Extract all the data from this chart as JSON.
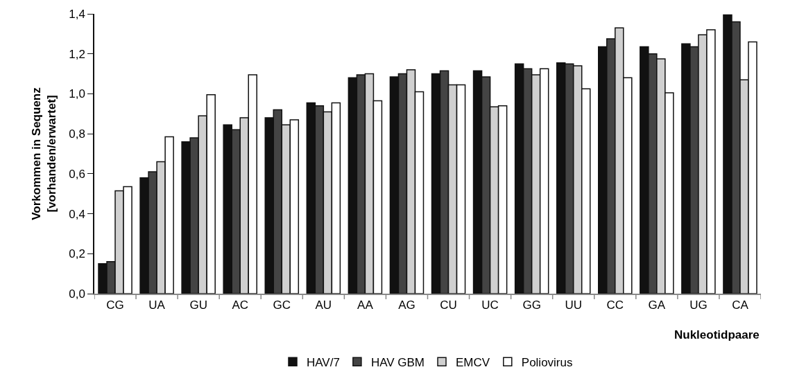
{
  "chart_data": {
    "type": "bar",
    "xlabel": "Nukleotidpaare",
    "ylabel": "Vorkommen in Sequenz\n[vorhanden/erwartet]",
    "categories": [
      "CG",
      "UA",
      "GU",
      "AC",
      "GC",
      "AU",
      "AA",
      "AG",
      "CU",
      "UC",
      "GG",
      "UU",
      "CC",
      "GA",
      "UG",
      "CA"
    ],
    "series": [
      {
        "name": "HAV/7",
        "color": "#111111",
        "values": [
          0.15,
          0.58,
          0.76,
          0.845,
          0.88,
          0.955,
          1.08,
          1.085,
          1.1,
          1.115,
          1.15,
          1.155,
          1.235,
          1.235,
          1.25,
          1.395
        ]
      },
      {
        "name": "HAV GBM",
        "color": "#444444",
        "values": [
          0.16,
          0.61,
          0.78,
          0.82,
          0.92,
          0.94,
          1.095,
          1.1,
          1.115,
          1.085,
          1.125,
          1.15,
          1.275,
          1.2,
          1.235,
          1.36
        ]
      },
      {
        "name": "EMCV",
        "color": "#d0d0d0",
        "values": [
          0.515,
          0.66,
          0.89,
          0.88,
          0.845,
          0.91,
          1.1,
          1.12,
          1.045,
          0.935,
          1.095,
          1.14,
          1.33,
          1.175,
          1.295,
          1.07
        ]
      },
      {
        "name": "Poliovirus",
        "color": "#ffffff",
        "values": [
          0.535,
          0.785,
          0.995,
          1.095,
          0.87,
          0.955,
          0.965,
          1.01,
          1.045,
          0.94,
          1.125,
          1.025,
          1.08,
          1.005,
          1.32,
          1.26
        ]
      }
    ],
    "ylim": [
      0,
      1.4
    ],
    "yticks": [
      {
        "value": 0,
        "label": "0,0"
      },
      {
        "value": 0.2,
        "label": "0,2"
      },
      {
        "value": 0.4,
        "label": "0,4"
      },
      {
        "value": 0.6,
        "label": "0,6"
      },
      {
        "value": 0.8,
        "label": "0,8"
      },
      {
        "value": 1,
        "label": "1,0"
      },
      {
        "value": 1.2,
        "label": "1,2"
      },
      {
        "value": 1.4,
        "label": "1,4"
      }
    ],
    "grid": false,
    "legend": "bottom"
  }
}
